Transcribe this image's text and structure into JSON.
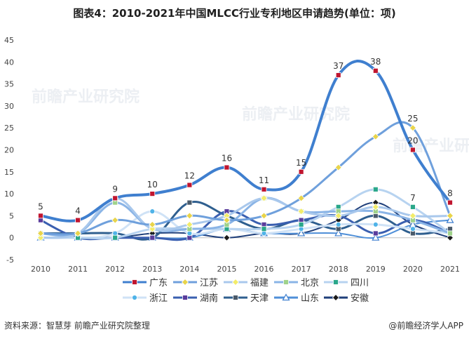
{
  "title": "图表4：2010-2021年中国MLCC行业专利地区申请趋势(单位：项)",
  "footer": {
    "source": "资料来源：智慧芽 前瞻产业研究院整理",
    "credit": "@前瞻经济学人APP"
  },
  "watermark": "前瞻产业研究院",
  "chart_data": {
    "type": "line",
    "smooth": true,
    "x": [
      "2010",
      "2011",
      "2012",
      "2013",
      "2014",
      "2015",
      "2016",
      "2017",
      "2018",
      "2019",
      "2020",
      "2021"
    ],
    "ylim": [
      -5,
      45
    ],
    "yticks": [
      -5,
      0,
      5,
      10,
      15,
      20,
      25,
      30,
      35,
      40,
      45
    ],
    "grid": false,
    "legend_position": "bottom",
    "series": [
      {
        "name": "广东",
        "color": "#3f7fcf",
        "marker": "square",
        "marker_color": "#c0152f",
        "width": 4,
        "values": [
          5,
          4,
          9,
          10,
          12,
          16,
          11,
          15,
          37,
          38,
          20,
          8
        ],
        "labels": true
      },
      {
        "name": "江苏",
        "color": "#6fa0dc",
        "marker": "diamond",
        "marker_color": "#e8d44a",
        "width": 3,
        "values": [
          1,
          1,
          4,
          3,
          5,
          4,
          5,
          9,
          16,
          23,
          25,
          5
        ],
        "labels": false
      },
      {
        "name": "福建",
        "color": "#a9c8ec",
        "marker": "diamond",
        "marker_color": "#f2ec6a",
        "width": 3,
        "values": [
          0,
          1,
          9,
          2,
          3,
          5,
          9,
          6,
          5,
          7,
          5,
          5
        ],
        "labels": false
      },
      {
        "name": "北京",
        "color": "#8ab4e6",
        "marker": "square",
        "marker_color": "#9fd28a",
        "width": 3,
        "values": [
          1,
          1,
          8,
          2,
          2,
          3,
          9,
          6,
          6,
          6,
          4,
          1
        ],
        "labels": false
      },
      {
        "name": "四川",
        "color": "#b7d3f0",
        "marker": "square",
        "marker_color": "#2aa78a",
        "width": 3,
        "values": [
          0,
          0,
          0,
          2,
          2,
          2,
          2,
          3,
          7,
          11,
          7,
          1
        ],
        "labels": false
      },
      {
        "name": "浙江",
        "color": "#cfe2f6",
        "marker": "circle",
        "marker_color": "#4fb3e8",
        "width": 3,
        "values": [
          1,
          0,
          1,
          6,
          1,
          2,
          1,
          2,
          3,
          3,
          2,
          1
        ],
        "labels": false
      },
      {
        "name": "湖南",
        "color": "#3a5fb0",
        "marker": "square",
        "marker_color": "#5a3c9c",
        "width": 3,
        "values": [
          4,
          0,
          0,
          0,
          0,
          6,
          3,
          4,
          5,
          1,
          4,
          1
        ],
        "labels": false
      },
      {
        "name": "天津",
        "color": "#2f5f8f",
        "marker": "square",
        "marker_color": "#4a5a6a",
        "width": 3,
        "values": [
          1,
          1,
          1,
          0,
          8,
          5,
          2,
          4,
          2,
          5,
          1,
          2
        ],
        "labels": false
      },
      {
        "name": "山东",
        "color": "#4f8fd8",
        "marker": "triangle",
        "marker_color": "#ffffff",
        "width": 2,
        "values": [
          0,
          0,
          0,
          0,
          0,
          2,
          1,
          1,
          1,
          0,
          3,
          4
        ],
        "labels": false
      },
      {
        "name": "安徽",
        "color": "#1f3f7a",
        "marker": "diamond",
        "marker_color": "#1a1a1a",
        "width": 2,
        "values": [
          1,
          0,
          0,
          1,
          1,
          0,
          1,
          1,
          4,
          8,
          3,
          0
        ],
        "labels": false
      }
    ],
    "annotations": [
      {
        "series": "江苏",
        "index": 10,
        "value": 25
      },
      {
        "series": "四川",
        "index": 10,
        "value": 7
      }
    ]
  }
}
